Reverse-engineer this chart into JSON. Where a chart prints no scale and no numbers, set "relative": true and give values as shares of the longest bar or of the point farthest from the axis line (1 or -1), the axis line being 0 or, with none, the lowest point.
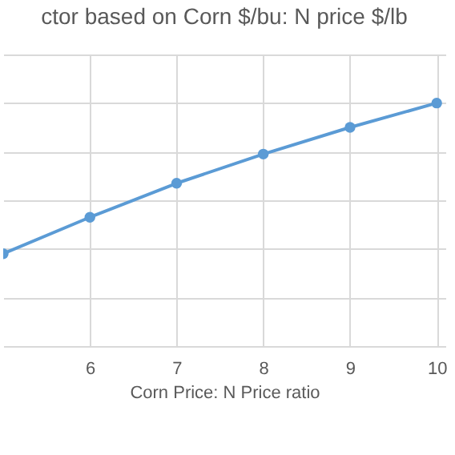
{
  "chart_data": {
    "type": "line",
    "title": "ctor based on Corn $/bu: N price $/lb",
    "xlabel": "Corn Price: N Price ratio",
    "x": [
      5,
      6,
      7,
      8,
      9,
      10
    ],
    "series": [
      {
        "color": "#5b9bd5",
        "values": [
          0.38,
          0.53,
          0.67,
          0.79,
          0.9,
          1.0
        ]
      }
    ],
    "relative": true,
    "xlim": [
      5,
      10.1
    ],
    "xticks": [
      6,
      7,
      8,
      9,
      10
    ],
    "grid": true,
    "marker": "circle"
  }
}
